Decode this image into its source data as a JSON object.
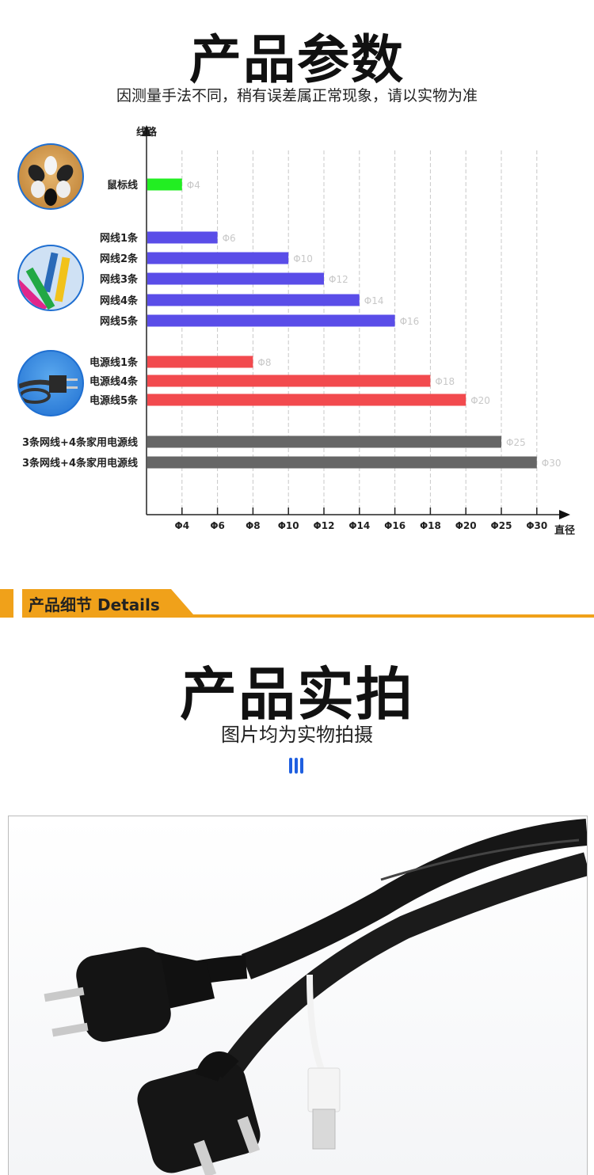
{
  "header": {
    "title": "产品参数",
    "subtitle": "因测量手法不同，稍有误差属正常现象，请以实物为准"
  },
  "chart_data": {
    "type": "bar",
    "orientation": "horizontal",
    "ylabel": "线路",
    "xlabel": "直径",
    "x_ticks": [
      "Φ4",
      "Φ6",
      "Φ8",
      "Φ10",
      "Φ12",
      "Φ14",
      "Φ16",
      "Φ18",
      "Φ20",
      "Φ25",
      "Φ30"
    ],
    "grid": true,
    "categories": [
      "鼠标线",
      "网线1条",
      "网线2条",
      "网线3条",
      "网线4条",
      "网线5条",
      "电源线1条",
      "电源线4条",
      "电源线5条",
      "3条网线+4条家用电源线",
      "3条网线+4条家用电源线"
    ],
    "values": [
      4,
      6,
      10,
      12,
      14,
      16,
      8,
      18,
      20,
      25,
      30
    ],
    "value_labels": [
      "Φ4",
      "Φ6",
      "Φ10",
      "Φ12",
      "Φ14",
      "Φ16",
      "Φ8",
      "Φ18",
      "Φ20",
      "Φ25",
      "Φ30"
    ],
    "groups": [
      "mouse",
      "network",
      "network",
      "network",
      "network",
      "network",
      "power",
      "power",
      "power",
      "combo",
      "combo"
    ],
    "colors": {
      "mouse": "#22ee22",
      "network": "#5a4de8",
      "power": "#f24a4e",
      "combo": "#666666"
    }
  },
  "thumbnails": [
    {
      "icon": "mouse-cables-photo"
    },
    {
      "icon": "network-cables-photo"
    },
    {
      "icon": "power-plug-photo"
    }
  ],
  "details_banner": {
    "label": "产品细节 Details",
    "color": "#f0a11a"
  },
  "section2": {
    "title": "产品实拍",
    "subtitle": "图片均为实物拍摄",
    "accent_color": "#1f5fe0"
  },
  "photo": {
    "icon": "cable-wrap-product-photo"
  }
}
